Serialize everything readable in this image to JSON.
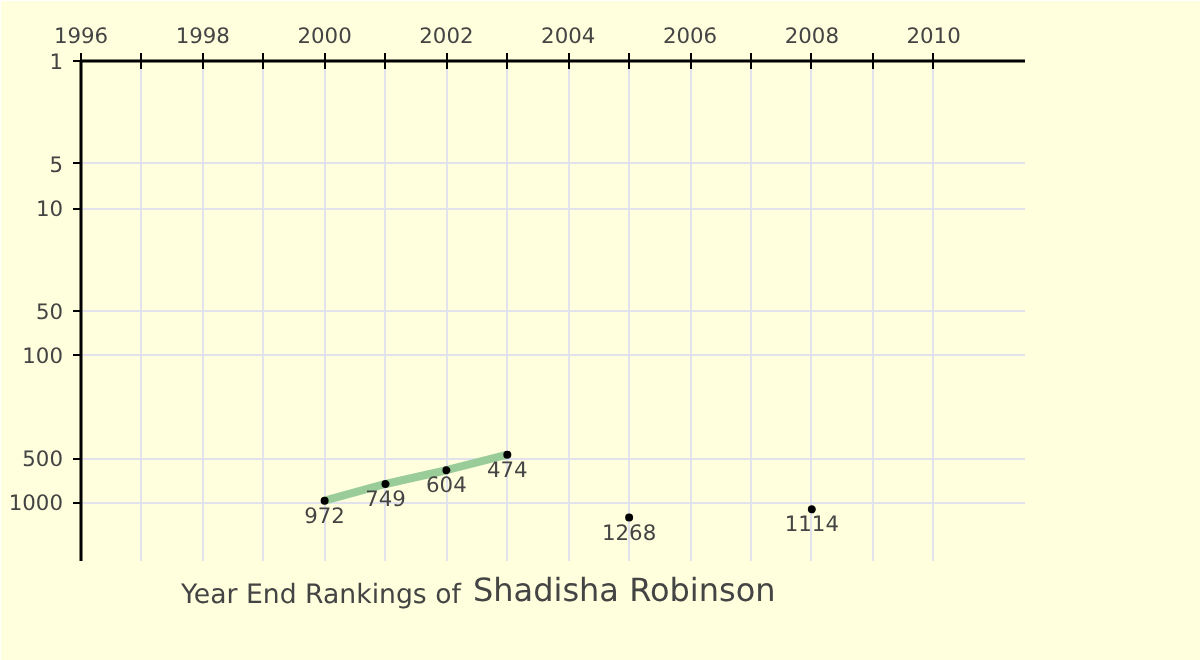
{
  "chart_data": {
    "type": "line",
    "title": "Year End Rankings of",
    "subtitle": "Shadisha Robinson",
    "xlim": [
      1996,
      2011.5
    ],
    "ylim": [
      2500,
      1
    ],
    "log": true,
    "grid": true,
    "data_labels": true,
    "xticks": [
      1996,
      {
        "value": 1997,
        "label": null
      },
      1998,
      {
        "value": 1999,
        "label": null
      },
      2000,
      {
        "value": 2001,
        "label": null
      },
      2002,
      {
        "value": 2003,
        "label": null
      },
      2004,
      {
        "value": 2005,
        "label": null
      },
      2006,
      {
        "value": 2007,
        "label": null
      },
      2008,
      {
        "value": 2009,
        "label": null
      },
      2010
    ],
    "yticks": [
      1,
      5,
      10,
      50,
      100,
      500,
      1000
    ],
    "series": [
      {
        "color": "#99cc99",
        "marker": "circle",
        "x": [
          2000,
          2001,
          2002,
          2003
        ],
        "values": [
          972,
          749,
          604,
          474
        ]
      },
      {
        "type": "scatter",
        "color": "#000000",
        "marker": "circle",
        "x": [
          2005,
          2008
        ],
        "values": [
          1268,
          1114
        ]
      }
    ]
  }
}
